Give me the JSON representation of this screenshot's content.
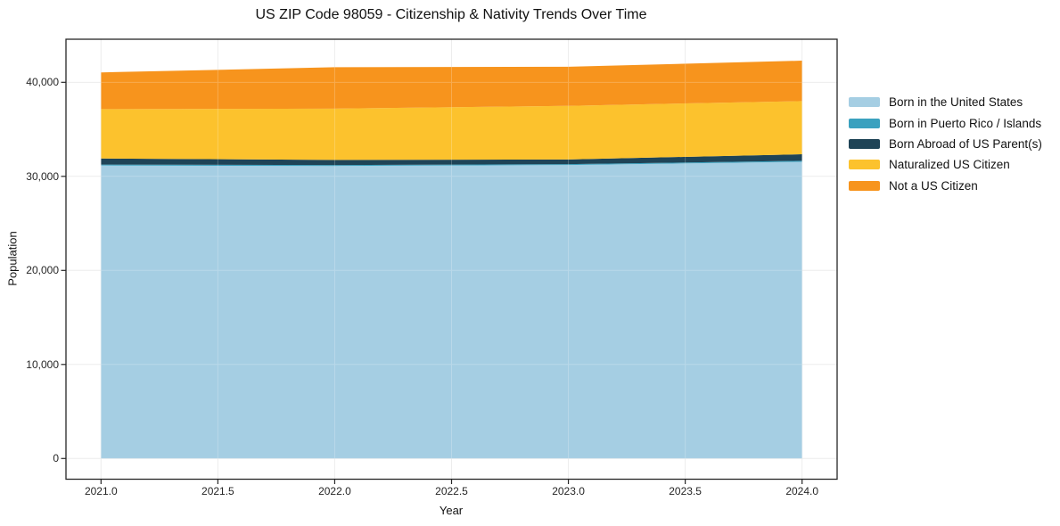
{
  "chart_data": {
    "type": "area",
    "stacked": true,
    "title": "US ZIP Code 98059 - Citizenship & Nativity Trends Over Time",
    "xlabel": "Year",
    "ylabel": "Population",
    "x": [
      2021,
      2022,
      2023,
      2024
    ],
    "series": [
      {
        "name": "Born in the United States",
        "color": "#a5cee3",
        "values": [
          31150,
          31100,
          31200,
          31550
        ]
      },
      {
        "name": "Born in Puerto Rico / Islands",
        "color": "#3aa1bf",
        "values": [
          100,
          100,
          100,
          100
        ]
      },
      {
        "name": "Born Abroad of US Parent(s)",
        "color": "#1f4457",
        "values": [
          650,
          550,
          500,
          700
        ]
      },
      {
        "name": "Naturalized US Citizen",
        "color": "#fcc22d",
        "values": [
          5250,
          5450,
          5700,
          5650
        ]
      },
      {
        "name": "Not a US Citizen",
        "color": "#f7941d",
        "values": [
          3900,
          4400,
          4150,
          4300
        ]
      }
    ],
    "stacked_totals": [
      41050,
      41600,
      41650,
      42300
    ],
    "xticks": {
      "values": [
        2021.0,
        2021.5,
        2022.0,
        2022.5,
        2023.0,
        2023.5,
        2024.0
      ],
      "labels": [
        "2021.0",
        "2021.5",
        "2022.0",
        "2022.5",
        "2023.0",
        "2023.5",
        "2024.0"
      ]
    },
    "yticks": {
      "values": [
        0,
        10000,
        20000,
        30000,
        40000
      ],
      "labels": [
        "0",
        "10,000",
        "20,000",
        "30,000",
        "40,000"
      ]
    },
    "xlim": [
      2020.85,
      2024.15
    ],
    "ylim": [
      -2200,
      44580
    ],
    "grid": true,
    "legend_position": "right-outside",
    "style": {
      "background": "#ffffff",
      "grid_color": "#e9e9e9",
      "spine_color": "#262626",
      "text_color": "#111111"
    }
  }
}
